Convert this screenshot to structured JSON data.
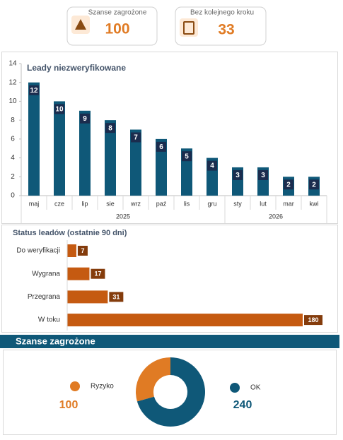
{
  "kpis": [
    {
      "label": "Szanse zagrożone",
      "value": 100
    },
    {
      "label": "Bez kolejnego kroku",
      "value": 33
    }
  ],
  "chart_data": [
    {
      "type": "bar",
      "title": "Leady niezweryfikowane",
      "categories": [
        "maj",
        "cze",
        "lip",
        "sie",
        "wrz",
        "paź",
        "lis",
        "gru",
        "sty",
        "lut",
        "mar",
        "kwi"
      ],
      "category_groups": [
        {
          "label": "2025",
          "count": 8
        },
        {
          "label": "2026",
          "count": 4
        }
      ],
      "values": [
        12,
        10,
        9,
        8,
        7,
        6,
        5,
        4,
        3,
        3,
        2,
        2
      ],
      "color": "#0f5878",
      "label_color": "#1b2c4e",
      "ylim": [
        0,
        14
      ],
      "yticks": [
        0,
        2,
        4,
        6,
        8,
        10,
        12,
        14
      ],
      "grid": false
    },
    {
      "type": "hbar",
      "title": "Status leadów (ostatnie 90 dni)",
      "categories": [
        "Do weryfikacji",
        "Wygrana",
        "Przegrana",
        "W toku"
      ],
      "values": [
        7,
        17,
        31,
        180
      ],
      "color": "#c55a11",
      "label_color": "#843c0c"
    },
    {
      "type": "donut",
      "title": "Szanse zagrożone",
      "categories": [
        "Ryzyko",
        "OK"
      ],
      "values": [
        100,
        240
      ],
      "colors": [
        "#e07b24",
        "#0f5878"
      ]
    }
  ]
}
